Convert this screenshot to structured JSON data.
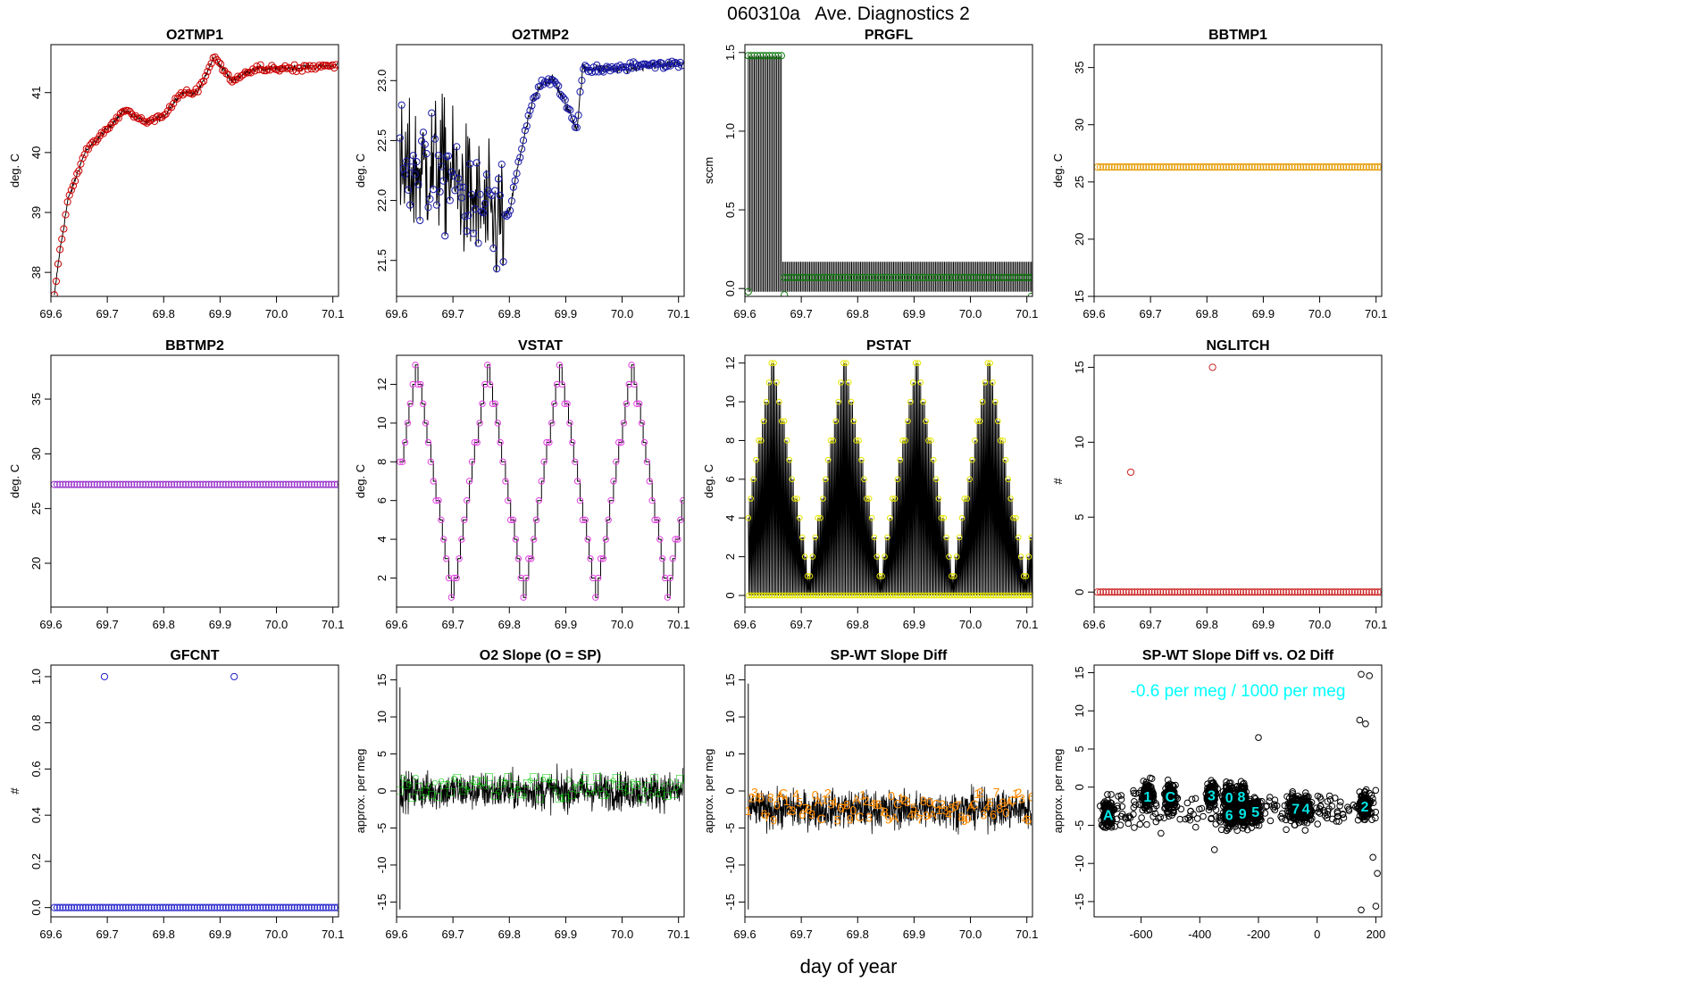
{
  "page": {
    "title": "060310a   Ave. Diagnostics 2",
    "xlabel": "day of year"
  },
  "chart_data": [
    {
      "type": "scatter",
      "title": "O2TMP1",
      "ylabel": "deg. C",
      "color": "#cc0000",
      "xlim": [
        69.6,
        70.11
      ],
      "ylim": [
        37.6,
        41.8
      ],
      "xticks": [
        69.6,
        69.7,
        69.8,
        69.9,
        70.0,
        70.1
      ],
      "yticks": [
        38,
        39,
        40,
        41
      ],
      "x_start": 69.606,
      "x_end": 70.108,
      "series": [
        {
          "connected": true,
          "n_points": 150,
          "profile_x": [
            69.606,
            69.615,
            69.63,
            69.66,
            69.7,
            69.73,
            69.77,
            69.8,
            69.83,
            69.86,
            69.89,
            69.92,
            69.96,
            70.0,
            70.108
          ],
          "profile_y": [
            37.6,
            38.3,
            39.2,
            40.0,
            40.4,
            40.7,
            40.5,
            40.6,
            41.0,
            41.0,
            41.6,
            41.2,
            41.4,
            41.4,
            41.45
          ],
          "noise": 0.05
        }
      ]
    },
    {
      "type": "scatter",
      "title": "O2TMP2",
      "ylabel": "deg. C",
      "color": "#1a1aa8",
      "xlim": [
        69.6,
        70.11
      ],
      "ylim": [
        21.2,
        23.3
      ],
      "xticks": [
        69.6,
        69.7,
        69.8,
        69.9,
        70.0,
        70.1
      ],
      "yticks": [
        21.5,
        22.0,
        22.5,
        23.0
      ],
      "x_start": 69.606,
      "x_end": 70.108,
      "series": [
        {
          "connected": true,
          "n_points": 170,
          "profile_x": [
            69.606,
            69.68,
            69.77,
            69.8,
            69.82,
            69.84,
            69.86,
            69.88,
            69.9,
            69.92,
            69.93,
            70.0,
            70.108
          ],
          "profile_y": [
            22.2,
            22.3,
            21.8,
            21.9,
            22.4,
            22.8,
            23.0,
            23.0,
            22.8,
            22.6,
            23.1,
            23.1,
            23.15
          ],
          "noise": 0.55,
          "noise_until": 69.79
        }
      ]
    },
    {
      "type": "scatter",
      "title": "PRGFL",
      "ylabel": "sccm",
      "color": "#127a12",
      "xlim": [
        69.6,
        70.11
      ],
      "ylim": [
        -0.05,
        1.55
      ],
      "xticks": [
        69.6,
        69.7,
        69.8,
        69.9,
        70.0,
        70.1
      ],
      "yticks": [
        0.0,
        0.5,
        1.0,
        1.5
      ],
      "x_start": 69.606,
      "x_end": 70.108,
      "series": [
        {
          "connected": false,
          "n_points": 95,
          "high_value": 1.48,
          "high_until": 69.665,
          "low_value": 0.07,
          "spike_low": -0.04,
          "spike_high": 0.17
        }
      ]
    },
    {
      "type": "scatter",
      "title": "BBTMP1",
      "ylabel": "deg. C",
      "color": "#e69a00",
      "xlim": [
        69.6,
        70.11
      ],
      "ylim": [
        15,
        37
      ],
      "xticks": [
        69.6,
        69.7,
        69.8,
        69.9,
        70.0,
        70.1
      ],
      "yticks": [
        15,
        20,
        25,
        30,
        35
      ],
      "x_start": 69.606,
      "x_end": 70.108,
      "series": [
        {
          "connected": false,
          "n_points": 100,
          "constant": 26.3
        }
      ]
    },
    {
      "type": "scatter",
      "title": "BBTMP2",
      "ylabel": "deg. C",
      "color": "#9933cc",
      "xlim": [
        69.6,
        70.11
      ],
      "ylim": [
        16,
        39
      ],
      "xticks": [
        69.6,
        69.7,
        69.8,
        69.9,
        70.0,
        70.1
      ],
      "yticks": [
        20,
        25,
        30,
        35
      ],
      "x_start": 69.606,
      "x_end": 70.108,
      "series": [
        {
          "connected": false,
          "n_points": 100,
          "constant": 27.2
        }
      ]
    },
    {
      "type": "line",
      "title": "VSTAT",
      "ylabel": "deg. C",
      "color": "#e040e0",
      "xlim": [
        69.6,
        70.11
      ],
      "ylim": [
        0.5,
        13.5
      ],
      "xticks": [
        69.6,
        69.7,
        69.8,
        69.9,
        70.0,
        70.1
      ],
      "yticks": [
        2,
        4,
        6,
        8,
        10,
        12
      ],
      "x_start": 69.606,
      "x_end": 70.108,
      "series": [
        {
          "connected": true,
          "staircase_period": 0.1275,
          "min": 1,
          "max": 13,
          "phase_offset": 0.035
        }
      ]
    },
    {
      "type": "line",
      "title": "PSTAT",
      "ylabel": "deg. C",
      "color": "#e6e600",
      "xlim": [
        69.6,
        70.11
      ],
      "ylim": [
        -0.6,
        12.4
      ],
      "xticks": [
        69.6,
        69.7,
        69.8,
        69.9,
        70.0,
        70.1
      ],
      "yticks": [
        0,
        2,
        4,
        6,
        8,
        10,
        12
      ],
      "x_start": 69.606,
      "x_end": 70.108,
      "series": [
        {
          "connected": true,
          "staircase_period": 0.1275,
          "min": 1,
          "max": 12,
          "phase_offset": 0.02,
          "oscillating": true
        }
      ]
    },
    {
      "type": "scatter",
      "title": "NGLITCH",
      "ylabel": "#",
      "color": "#cc2222",
      "xlim": [
        69.6,
        70.11
      ],
      "ylim": [
        -1,
        15.8
      ],
      "xticks": [
        69.6,
        69.7,
        69.8,
        69.9,
        70.0,
        70.1
      ],
      "yticks": [
        0,
        5,
        10,
        15
      ],
      "x_start": 69.606,
      "x_end": 70.108,
      "series": [
        {
          "connected": false,
          "n_points": 100,
          "constant": 0,
          "outliers_x": [
            69.665,
            69.81
          ],
          "outliers_y": [
            8,
            15
          ]
        }
      ]
    },
    {
      "type": "scatter",
      "title": "GFCNT",
      "ylabel": "#",
      "color": "#2222cc",
      "xlim": [
        69.6,
        70.11
      ],
      "ylim": [
        -0.04,
        1.05
      ],
      "xticks": [
        69.6,
        69.7,
        69.8,
        69.9,
        70.0,
        70.1
      ],
      "yticks": [
        0.0,
        0.2,
        0.4,
        0.6,
        0.8,
        1.0
      ],
      "x_start": 69.606,
      "x_end": 70.108,
      "series": [
        {
          "connected": false,
          "n_points": 100,
          "constant": 0,
          "outliers_x": [
            69.695,
            69.925
          ],
          "outliers_y": [
            1,
            1
          ]
        }
      ]
    },
    {
      "type": "line",
      "title": "O2 Slope (O = SP)",
      "ylabel": "approx. per meg",
      "color": "#00cc00",
      "xlim": [
        69.6,
        70.11
      ],
      "ylim": [
        -17,
        17
      ],
      "xticks": [
        69.6,
        69.7,
        69.8,
        69.9,
        70.0,
        70.1
      ],
      "yticks": [
        -15,
        -10,
        -5,
        0,
        5,
        10,
        15
      ],
      "x_start": 69.606,
      "x_end": 70.108,
      "series": [
        {
          "connected": true,
          "center": 0,
          "noise": 2.5,
          "spike_x": 69.606,
          "spike_min": -16,
          "spike_max": 14,
          "markers": "O",
          "marker_band": [
            -1,
            2
          ]
        }
      ]
    },
    {
      "type": "line",
      "title": "SP-WT Slope Diff",
      "ylabel": "approx. per meg",
      "color": "#ff8c00",
      "xlim": [
        69.6,
        70.11
      ],
      "ylim": [
        -17,
        17
      ],
      "xticks": [
        69.6,
        69.7,
        69.8,
        69.9,
        70.0,
        70.1
      ],
      "yticks": [
        -15,
        -10,
        -5,
        0,
        5,
        10,
        15
      ],
      "x_start": 69.606,
      "x_end": 70.108,
      "series": [
        {
          "connected": true,
          "center": -2.5,
          "noise": 2.5,
          "spike_x": 69.606,
          "spike_min": -16,
          "spike_max": 14.5,
          "markers": "digits",
          "marker_band": [
            -4,
            0
          ]
        }
      ]
    },
    {
      "type": "scatter",
      "title": "SP-WT Slope Diff vs. O2 Diff",
      "ylabel": "approx. per meg",
      "annotation": "-0.6 per meg / 1000 per meg",
      "annotation_color": "#00ffff",
      "color": "#000000",
      "xlim": [
        -760,
        220
      ],
      "ylim": [
        -17,
        16
      ],
      "xticks": [
        -600,
        -400,
        -200,
        0,
        200
      ],
      "yticks": [
        -15,
        -10,
        -5,
        0,
        5,
        10,
        15
      ],
      "clusters": [
        {
          "x": -712,
          "y": -3.6,
          "label": "A"
        },
        {
          "x": -578,
          "y": -1.2,
          "label": "1"
        },
        {
          "x": -500,
          "y": -1.2,
          "label": "C"
        },
        {
          "x": -360,
          "y": -1.0,
          "label": "3"
        },
        {
          "x": -300,
          "y": -1.3,
          "label": "0"
        },
        {
          "x": -258,
          "y": -1.2,
          "label": "8"
        },
        {
          "x": -300,
          "y": -3.6,
          "label": "6"
        },
        {
          "x": -254,
          "y": -3.4,
          "label": "9"
        },
        {
          "x": -210,
          "y": -3.2,
          "label": "5"
        },
        {
          "x": -73,
          "y": -2.8,
          "label": "7"
        },
        {
          "x": -38,
          "y": -2.8,
          "label": "4"
        },
        {
          "x": 162,
          "y": -2.5,
          "label": "2"
        }
      ],
      "outliers": [
        [
          150,
          14.8
        ],
        [
          178,
          14.6
        ],
        [
          145,
          8.8
        ],
        [
          165,
          8.3
        ],
        [
          190,
          -9.2
        ],
        [
          205,
          -11.3
        ],
        [
          200,
          -15.6
        ],
        [
          150,
          -16.1
        ],
        [
          -505,
          -3.8
        ],
        [
          -350,
          -8.2
        ],
        [
          -200,
          6.5
        ]
      ]
    }
  ]
}
